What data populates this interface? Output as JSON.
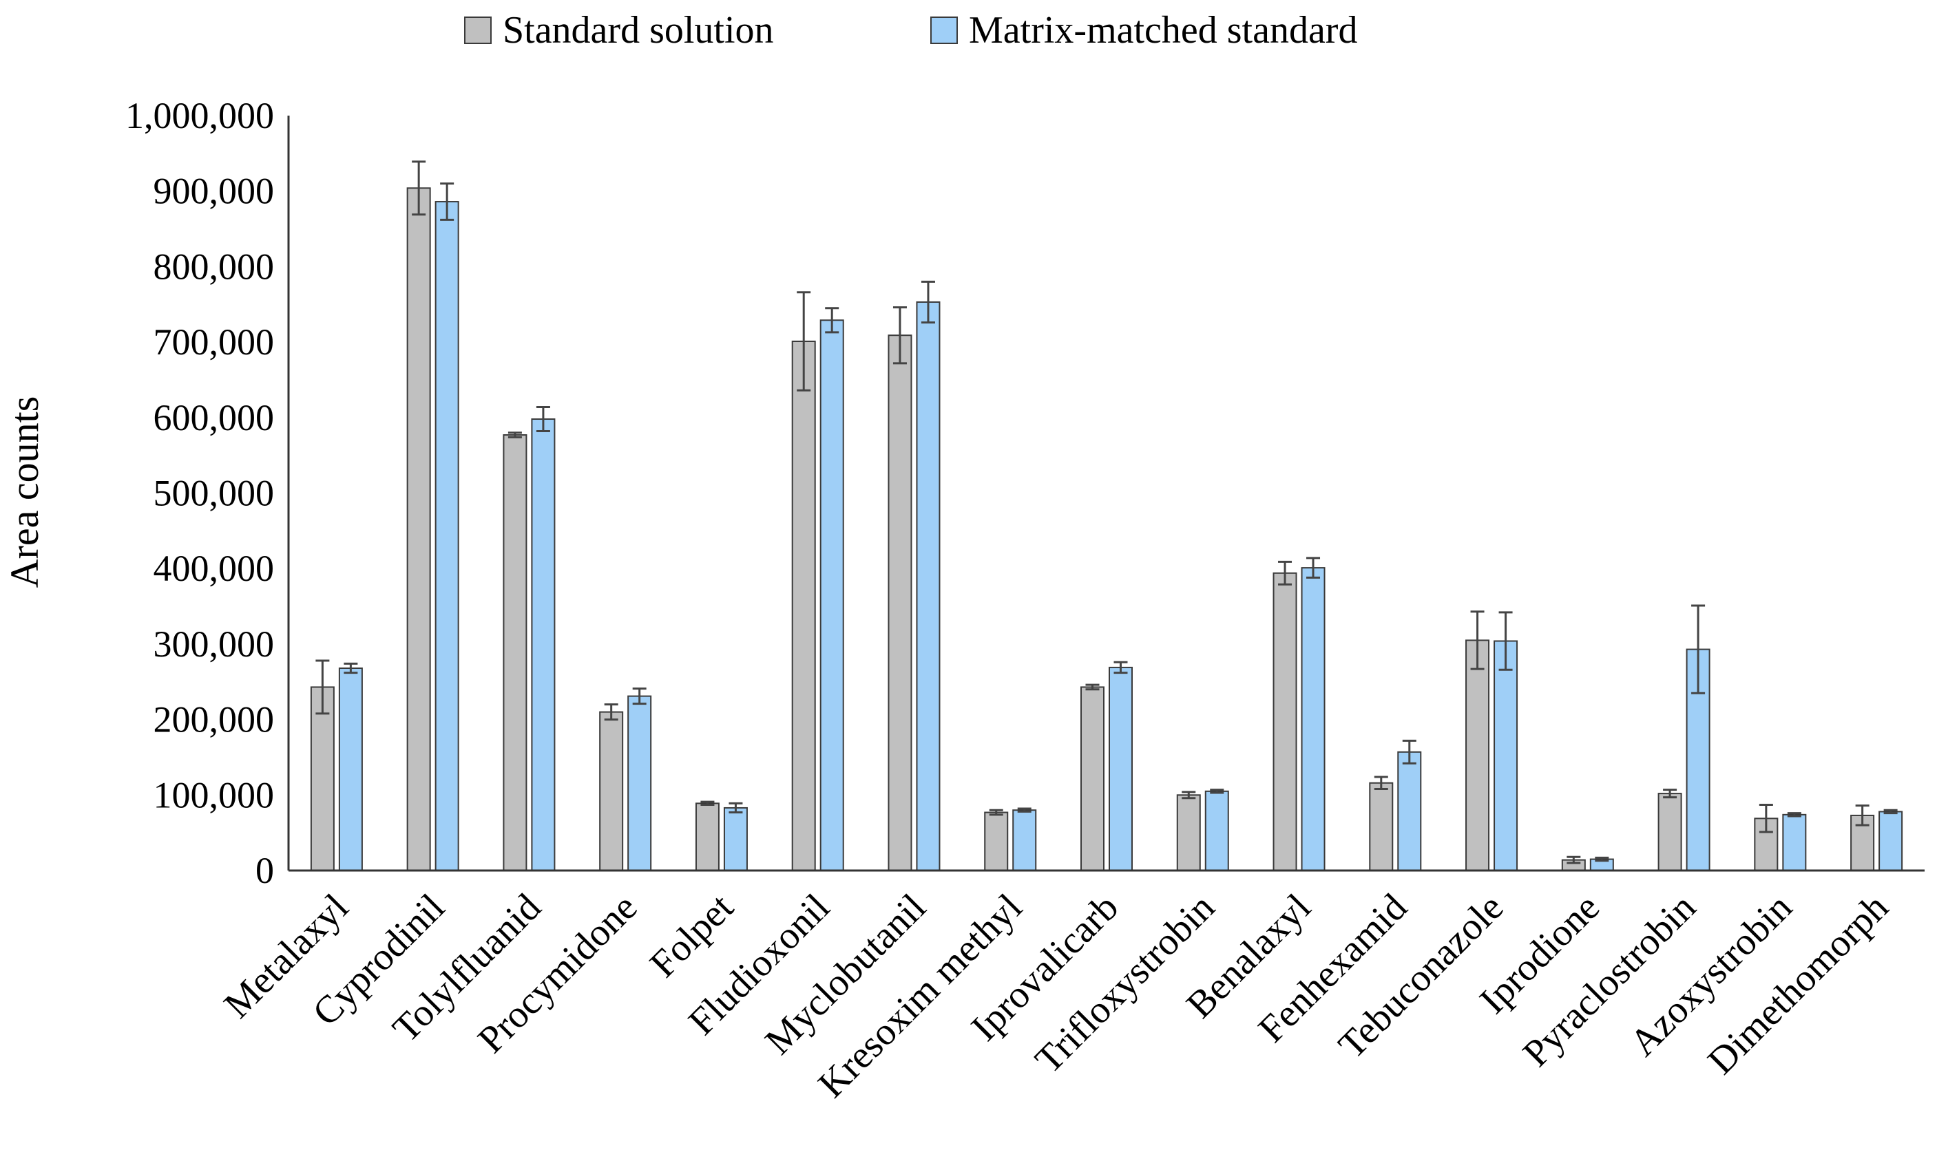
{
  "chart_data": {
    "type": "bar",
    "title": "",
    "xlabel": "",
    "ylabel": "Area counts",
    "ylim": [
      0,
      1000000
    ],
    "y_ticks": [
      0,
      100000,
      200000,
      300000,
      400000,
      500000,
      600000,
      700000,
      800000,
      900000,
      1000000
    ],
    "y_tick_labels": [
      "0",
      "100,000",
      "200,000",
      "300,000",
      "400,000",
      "500,000",
      "600,000",
      "700,000",
      "800,000",
      "900,000",
      "1,000,000"
    ],
    "grid": false,
    "legend_position": "top",
    "categories": [
      "Metalaxyl",
      "Cyprodinil",
      "Tolylfluanid",
      "Procymidone",
      "Folpet",
      "Fludioxonil",
      "Myclobutanil",
      "Kresoxim methyl",
      "Iprovalicarb",
      "Trifloxystrobin",
      "Benalaxyl",
      "Fenhexamid",
      "Tebuconazole",
      "Iprodione",
      "Pyraclostrobin",
      "Azoxystrobin",
      "Dimethomorph"
    ],
    "series": [
      {
        "name": "Standard solution",
        "color": "#c0c0c0",
        "values": [
          243000,
          904000,
          577000,
          210000,
          89000,
          701000,
          709000,
          77000,
          243000,
          100000,
          394000,
          116000,
          305000,
          14000,
          102000,
          69000,
          73000
        ],
        "errors": [
          35000,
          35000,
          3000,
          10000,
          2000,
          65000,
          37000,
          3000,
          3000,
          4000,
          15000,
          8000,
          38000,
          4000,
          5000,
          18000,
          13000
        ]
      },
      {
        "name": "Matrix-matched standard",
        "color": "#9fcff7",
        "values": [
          268000,
          886000,
          598000,
          231000,
          83000,
          729000,
          753000,
          80000,
          269000,
          105000,
          401000,
          157000,
          304000,
          15000,
          293000,
          74000,
          78000
        ],
        "errors": [
          6000,
          24000,
          16000,
          10000,
          6000,
          16000,
          27000,
          2000,
          7000,
          2000,
          13000,
          15000,
          38000,
          2000,
          58000,
          2000,
          2000
        ]
      }
    ]
  }
}
